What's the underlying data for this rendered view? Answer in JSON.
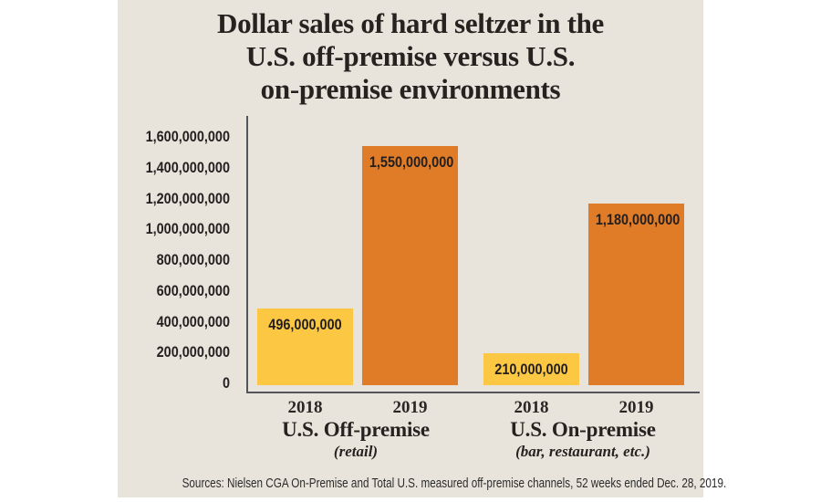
{
  "panel": {
    "background": "#E8E4DB"
  },
  "title": {
    "lines": [
      "Dollar sales of hard seltzer in the",
      "U.S. off-premise versus U.S.",
      "on-premise environments"
    ]
  },
  "chart_data": {
    "type": "bar",
    "title": "Dollar sales of hard seltzer in the U.S. off-premise versus U.S. on-premise environments",
    "xlabel": "",
    "ylabel": "",
    "ylim": [
      0,
      1600000000
    ],
    "ytick_step": 200000000,
    "ytick_labels": [
      "0",
      "200,000,000",
      "400,000,000",
      "600,000,000",
      "800,000,000",
      "1,000,000,000",
      "1,200,000,000",
      "1,400,000,000",
      "1,600,000,000"
    ],
    "grid": false,
    "legend": "none",
    "groups": [
      {
        "label": "U.S. Off-premise",
        "sublabel": "(retail)",
        "bars": [
          {
            "category": "2018",
            "value": 496000000,
            "value_label": "496,000,000",
            "color": "#FCC844"
          },
          {
            "category": "2019",
            "value": 1550000000,
            "value_label": "1,550,000,000",
            "color": "#E07C28"
          }
        ]
      },
      {
        "label": "U.S. On-premise",
        "sublabel": "(bar, restaurant, etc.)",
        "bars": [
          {
            "category": "2018",
            "value": 210000000,
            "value_label": "210,000,000",
            "color": "#FCC844"
          },
          {
            "category": "2019",
            "value": 1180000000,
            "value_label": "1,180,000,000",
            "color": "#E07C28"
          }
        ]
      }
    ]
  },
  "source": {
    "text": "Sources: Nielsen CGA On-Premise and Total U.S. measured off-premise channels, 52 weeks ended Dec. 28, 2019."
  },
  "colors": {
    "bar_2018": "#FCC844",
    "bar_2019": "#E07C28",
    "axis_line": "#54555A",
    "text": "#231F20",
    "panel_background": "#E8E4DB",
    "page_background": "#FFFFFF"
  }
}
